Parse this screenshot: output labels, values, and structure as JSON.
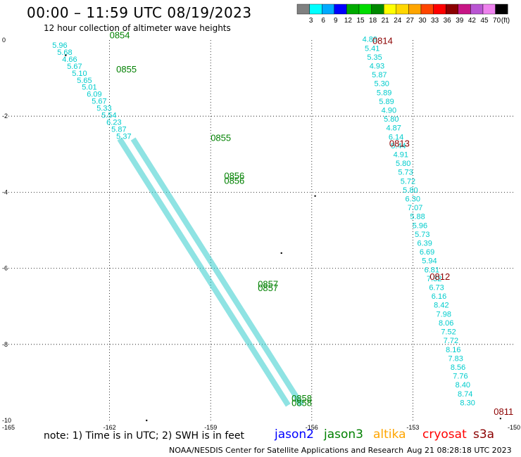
{
  "header": {
    "title": "00:00 – 11:59 UTC 08/19/2023",
    "subtitle": "12 hour collection of altimeter wave heights"
  },
  "legend": {
    "colors": [
      "#808080",
      "#00ffff",
      "#00aaff",
      "#0000ff",
      "#00aa00",
      "#00dd00",
      "#008800",
      "#ffff00",
      "#ffd700",
      "#ffa500",
      "#ff4500",
      "#ff0000",
      "#8b0000",
      "#c71585",
      "#ba55d3",
      "#ee82ee",
      "#000000"
    ],
    "labels": [
      "3",
      "6",
      "9",
      "12",
      "15",
      "18",
      "21",
      "24",
      "27",
      "30",
      "33",
      "36",
      "39",
      "42",
      "45",
      "70",
      "(ft)"
    ]
  },
  "chart_data": {
    "type": "scatter",
    "xlim": [
      -165,
      -150
    ],
    "ylim": [
      -10,
      0
    ],
    "xticks": [
      "-165",
      "-162",
      "-159",
      "-156",
      "-153",
      "-150"
    ],
    "yticks": [
      "0",
      "-2",
      "-4",
      "-6",
      "-8",
      "-10"
    ],
    "grid": true,
    "track1_swh": [
      "5.96",
      "5.68",
      "4.66",
      "5.67",
      "5.10",
      "5.65",
      "5.01",
      "6.09",
      "5.67",
      "5.33",
      "5.54",
      "6.23",
      "5.87",
      "5.37"
    ],
    "track2_swh": [
      "4.89",
      "5.41",
      "5.35",
      "4.93",
      "5.87",
      "5.30",
      "5.89",
      "5.89",
      "4.90",
      "5.80",
      "4.87",
      "6.14",
      "5.44",
      "4.91",
      "5.80",
      "5.73",
      "5.72",
      "5.80",
      "6.30",
      "7.07",
      "5.88",
      "5.96",
      "5.73",
      "6.39",
      "6.69",
      "5.94",
      "6.81",
      "7.32",
      "6.73",
      "6.16",
      "8.42",
      "7.98",
      "8.06",
      "7.52",
      "7.72",
      "8.16",
      "7.83",
      "8.56",
      "7.76",
      "8.40",
      "8.74",
      "8.30"
    ],
    "times_jason3": [
      "0854",
      "0855",
      "0855",
      "0856",
      "0856",
      "0857",
      "0857",
      "0858",
      "0858"
    ],
    "times_cryosat": [
      "0814",
      "0813",
      "0812",
      "0811"
    ]
  },
  "footer": {
    "note": "note: 1) Time is in UTC; 2) SWH is in feet",
    "missions": [
      "jason2",
      "jason3",
      "altika",
      "cryosat",
      "s3a"
    ],
    "mission_colors": [
      "#0000ff",
      "#008000",
      "#ffa500",
      "#ff0000",
      "#8b0000"
    ],
    "source": "NOAA/NESDIS Center for Satellite Applications and Research",
    "generated": "Aug 21 08:28:18 UTC 2023"
  }
}
